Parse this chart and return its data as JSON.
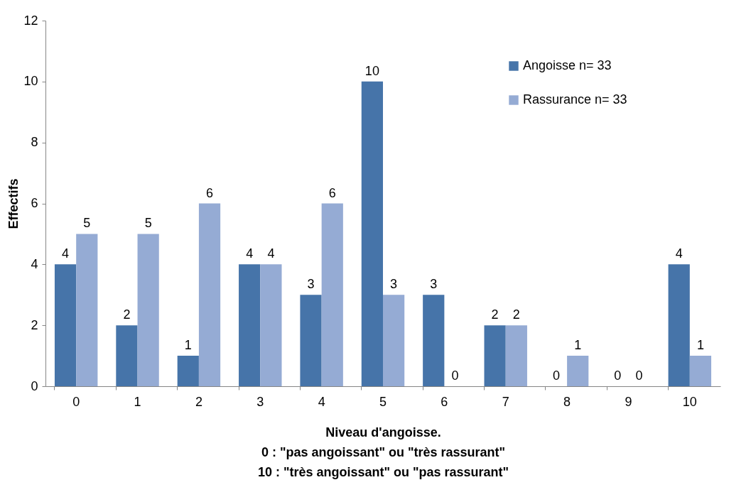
{
  "chart_data": {
    "type": "bar",
    "ylabel": "Effectifs",
    "xlabel": "Niveau d'angoisse.\n0 : \"pas angoissant\" ou \"très rassurant\"\n10 : \"très angoissant\" ou \"pas rassurant\"",
    "categories": [
      "0",
      "1",
      "2",
      "3",
      "4",
      "5",
      "6",
      "7",
      "8",
      "9",
      "10"
    ],
    "series": [
      {
        "name": "Angoisse n= 33",
        "color": "#4674a9",
        "values": [
          4,
          2,
          1,
          4,
          3,
          10,
          3,
          2,
          0,
          0,
          4
        ]
      },
      {
        "name": "Rassurance n= 33",
        "color": "#95abd4",
        "values": [
          5,
          5,
          6,
          4,
          6,
          3,
          0,
          2,
          1,
          0,
          1
        ]
      }
    ],
    "ylim": [
      0,
      12
    ],
    "yticks": [
      0,
      2,
      4,
      6,
      8,
      10,
      12
    ],
    "grid": false,
    "legend": "top right",
    "data_labels": true
  }
}
